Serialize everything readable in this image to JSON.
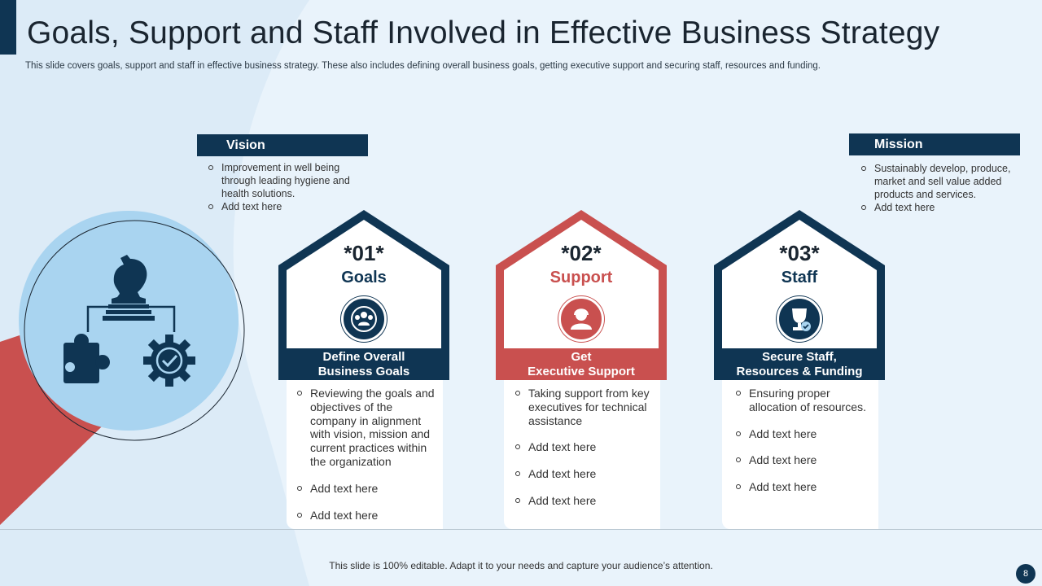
{
  "slide": {
    "title": "Goals, Support and Staff Involved in Effective Business Strategy",
    "subtitle": "This slide covers goals, support and staff in effective business strategy. These also includes defining overall business goals, getting executive support and securing staff, resources and funding.",
    "footer": "This slide is 100% editable. Adapt it to your needs and capture your audience’s attention.",
    "page_number": "8"
  },
  "vision": {
    "label": "Vision",
    "items": [
      "Improvement  in well being through leading hygiene and health solutions.",
      "Add text here"
    ]
  },
  "mission": {
    "label": "Mission",
    "items": [
      "Sustainably develop,  produce, market and sell value added products and services.",
      "Add text here"
    ]
  },
  "strategy_icon": {
    "icons": [
      "chess-knight-icon",
      "puzzle-piece-icon",
      "gear-check-icon"
    ]
  },
  "cards": [
    {
      "number": "*01*",
      "heading": "Goals",
      "icon": "team-globe-icon",
      "band_line1": "Define Overall",
      "band_line2": "Business Goals",
      "items": [
        "Reviewing the goals and objectives of the company in alignment with vision, mission and current practices within the organization",
        "Add text here",
        "Add text here"
      ]
    },
    {
      "number": "*02*",
      "heading": "Support",
      "icon": "support-agent-icon",
      "band_line1": "Get",
      "band_line2": "Executive Support",
      "items": [
        "Taking support from key executives for technical assistance",
        "Add text here",
        "Add text here",
        "Add text here"
      ]
    },
    {
      "number": "*03*",
      "heading": "Staff",
      "icon": "trophy-check-icon",
      "band_line1": "Secure Staff,",
      "band_line2": "Resources & Funding",
      "items": [
        "Ensuring proper allocation of resources.",
        "Add text here",
        "Add text here",
        "Add text here"
      ]
    }
  ],
  "colors": {
    "navy": "#0f3553",
    "red": "#c9504f",
    "light_blue": "#a9d4f0",
    "background": "#e9f3fb"
  }
}
